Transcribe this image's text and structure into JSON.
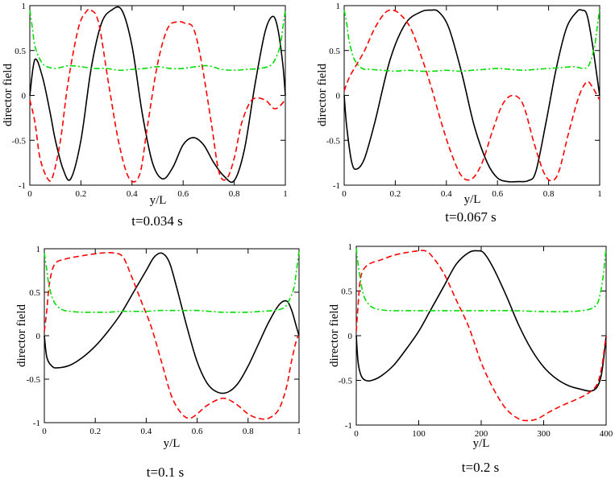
{
  "chart_data": [
    {
      "type": "line",
      "caption": "t=0.034 s",
      "xlabel": "y/L",
      "ylabel": "director field",
      "xlim": [
        0,
        1
      ],
      "ylim": [
        -1,
        1
      ],
      "xticks": [
        "0",
        "0.2",
        "0.4",
        "0.6",
        "0.8",
        "1"
      ],
      "yticks": [
        "-1",
        "-0.5",
        "0",
        "0.5",
        "1"
      ],
      "series": [
        {
          "color": "#000000",
          "dash": "solid",
          "x": [
            0,
            0.02,
            0.05,
            0.08,
            0.1,
            0.13,
            0.16,
            0.2,
            0.24,
            0.28,
            0.32,
            0.36,
            0.4,
            0.44,
            0.48,
            0.52,
            0.56,
            0.6,
            0.64,
            0.68,
            0.72,
            0.76,
            0.8,
            0.84,
            0.88,
            0.92,
            0.95,
            0.97,
            0.99,
            1
          ],
          "y": [
            0,
            0.4,
            0.2,
            -0.2,
            -0.5,
            -0.82,
            -0.93,
            -0.5,
            0.3,
            0.8,
            0.95,
            0.95,
            0.55,
            -0.2,
            -0.75,
            -0.93,
            -0.8,
            -0.55,
            -0.47,
            -0.55,
            -0.75,
            -0.9,
            -0.95,
            -0.6,
            0.1,
            0.7,
            0.88,
            0.75,
            0.35,
            0
          ]
        },
        {
          "color": "#ff0000",
          "dash": "dashed",
          "x": [
            0,
            0.02,
            0.04,
            0.07,
            0.09,
            0.12,
            0.15,
            0.19,
            0.22,
            0.24,
            0.27,
            0.31,
            0.35,
            0.39,
            0.43,
            0.46,
            0.5,
            0.54,
            0.58,
            0.61,
            0.64,
            0.67,
            0.71,
            0.74,
            0.77,
            0.8,
            0.83,
            0.87,
            0.92,
            0.96,
            1
          ],
          "y": [
            -0.05,
            -0.3,
            -0.7,
            -0.93,
            -0.9,
            -0.5,
            0.15,
            0.75,
            0.93,
            0.95,
            0.8,
            0.1,
            -0.55,
            -0.93,
            -0.88,
            -0.35,
            0.35,
            0.75,
            0.82,
            0.8,
            0.75,
            0.4,
            -0.3,
            -0.85,
            -0.93,
            -0.7,
            -0.3,
            -0.05,
            -0.05,
            -0.15,
            -0.05
          ]
        },
        {
          "color": "#00dd00",
          "dash": "dashdot",
          "x": [
            0,
            0.01,
            0.02,
            0.04,
            0.06,
            0.1,
            0.15,
            0.2,
            0.25,
            0.3,
            0.35,
            0.4,
            0.45,
            0.5,
            0.55,
            0.6,
            0.65,
            0.7,
            0.75,
            0.8,
            0.85,
            0.9,
            0.94,
            0.96,
            0.98,
            0.99,
            1
          ],
          "y": [
            0.95,
            0.75,
            0.55,
            0.4,
            0.33,
            0.3,
            0.33,
            0.32,
            0.3,
            0.3,
            0.28,
            0.29,
            0.3,
            0.32,
            0.3,
            0.3,
            0.32,
            0.33,
            0.29,
            0.28,
            0.29,
            0.3,
            0.33,
            0.4,
            0.55,
            0.75,
            0.95
          ]
        }
      ]
    },
    {
      "type": "line",
      "caption": "t=0.067 s",
      "xlabel": "y/L",
      "ylabel": "director field",
      "xlim": [
        0,
        1
      ],
      "ylim": [
        -1,
        1
      ],
      "xticks": [
        "0",
        "0.2",
        "0.4",
        "0.6",
        "0.8",
        "1"
      ],
      "yticks": [
        "-1",
        "-0.5",
        "0",
        "0.5",
        "1"
      ],
      "series": [
        {
          "color": "#000000",
          "dash": "solid",
          "x": [
            0,
            0.01,
            0.03,
            0.05,
            0.08,
            0.12,
            0.18,
            0.24,
            0.3,
            0.34,
            0.37,
            0.41,
            0.46,
            0.51,
            0.56,
            0.6,
            0.64,
            0.68,
            0.72,
            0.75,
            0.79,
            0.83,
            0.87,
            0.91,
            0.93,
            0.95,
            0.97,
            0.99,
            1
          ],
          "y": [
            0,
            -0.35,
            -0.75,
            -0.82,
            -0.7,
            -0.3,
            0.4,
            0.8,
            0.93,
            0.95,
            0.93,
            0.75,
            0.25,
            -0.35,
            -0.75,
            -0.92,
            -0.96,
            -0.96,
            -0.95,
            -0.85,
            -0.3,
            0.3,
            0.75,
            0.93,
            0.95,
            0.9,
            0.6,
            0.2,
            0
          ]
        },
        {
          "color": "#ff0000",
          "dash": "dashed",
          "x": [
            0,
            0.02,
            0.05,
            0.08,
            0.12,
            0.16,
            0.19,
            0.22,
            0.26,
            0.3,
            0.34,
            0.38,
            0.42,
            0.46,
            0.5,
            0.54,
            0.58,
            0.62,
            0.66,
            0.7,
            0.74,
            0.78,
            0.81,
            0.84,
            0.88,
            0.92,
            0.95,
            0.97,
            0.99,
            1
          ],
          "y": [
            0.05,
            0.2,
            0.35,
            0.5,
            0.75,
            0.92,
            0.95,
            0.9,
            0.75,
            0.45,
            0.1,
            -0.3,
            -0.65,
            -0.9,
            -0.93,
            -0.75,
            -0.4,
            -0.1,
            0,
            -0.1,
            -0.5,
            -0.85,
            -0.95,
            -0.85,
            -0.4,
            0,
            0.15,
            0.1,
            0,
            -0.05
          ]
        },
        {
          "color": "#00dd00",
          "dash": "dashdot",
          "x": [
            0,
            0.01,
            0.02,
            0.04,
            0.07,
            0.1,
            0.15,
            0.2,
            0.25,
            0.3,
            0.35,
            0.4,
            0.45,
            0.5,
            0.55,
            0.6,
            0.65,
            0.7,
            0.75,
            0.8,
            0.85,
            0.9,
            0.94,
            0.96,
            0.98,
            0.99,
            1
          ],
          "y": [
            0.95,
            0.8,
            0.6,
            0.4,
            0.3,
            0.29,
            0.28,
            0.27,
            0.28,
            0.27,
            0.27,
            0.28,
            0.27,
            0.28,
            0.29,
            0.3,
            0.29,
            0.28,
            0.29,
            0.3,
            0.31,
            0.32,
            0.3,
            0.35,
            0.55,
            0.75,
            0.97
          ]
        }
      ]
    },
    {
      "type": "line",
      "caption": "t=0.1 s",
      "xlabel": "y/L",
      "ylabel": "director field",
      "xlim": [
        0,
        1
      ],
      "ylim": [
        -1,
        1
      ],
      "xticks": [
        "0",
        "0.2",
        "0.4",
        "0.6",
        "0.8",
        "1"
      ],
      "yticks": [
        "-1",
        "-0.5",
        "0",
        "0.5",
        "1"
      ],
      "series": [
        {
          "color": "#000000",
          "dash": "solid",
          "x": [
            0,
            0.01,
            0.03,
            0.05,
            0.1,
            0.15,
            0.2,
            0.25,
            0.3,
            0.35,
            0.4,
            0.43,
            0.46,
            0.49,
            0.52,
            0.56,
            0.6,
            0.64,
            0.68,
            0.72,
            0.76,
            0.8,
            0.84,
            0.88,
            0.92,
            0.95,
            0.97,
            0.99,
            1
          ],
          "y": [
            0,
            -0.25,
            -0.35,
            -0.37,
            -0.34,
            -0.25,
            -0.12,
            0.05,
            0.25,
            0.5,
            0.75,
            0.9,
            0.95,
            0.85,
            0.55,
            0.1,
            -0.3,
            -0.55,
            -0.65,
            -0.65,
            -0.55,
            -0.35,
            -0.1,
            0.15,
            0.35,
            0.4,
            0.3,
            0.1,
            0
          ]
        },
        {
          "color": "#ff0000",
          "dash": "dashed",
          "x": [
            0,
            0.01,
            0.02,
            0.04,
            0.08,
            0.15,
            0.22,
            0.28,
            0.31,
            0.34,
            0.38,
            0.42,
            0.46,
            0.5,
            0.54,
            0.57,
            0.6,
            0.64,
            0.7,
            0.75,
            0.8,
            0.84,
            0.88,
            0.92,
            0.95,
            0.97,
            0.99,
            1
          ],
          "y": [
            0.05,
            0.3,
            0.6,
            0.82,
            0.88,
            0.92,
            0.95,
            0.95,
            0.9,
            0.7,
            0.4,
            0.1,
            -0.3,
            -0.7,
            -0.9,
            -0.95,
            -0.9,
            -0.8,
            -0.72,
            -0.78,
            -0.9,
            -0.95,
            -0.95,
            -0.85,
            -0.6,
            -0.3,
            -0.05,
            0
          ]
        },
        {
          "color": "#00dd00",
          "dash": "dashdot",
          "x": [
            0,
            0.01,
            0.02,
            0.04,
            0.07,
            0.1,
            0.15,
            0.2,
            0.25,
            0.3,
            0.35,
            0.4,
            0.45,
            0.5,
            0.55,
            0.6,
            0.65,
            0.7,
            0.75,
            0.8,
            0.85,
            0.9,
            0.94,
            0.96,
            0.98,
            0.99,
            1
          ],
          "y": [
            0.95,
            0.75,
            0.55,
            0.38,
            0.3,
            0.28,
            0.27,
            0.27,
            0.27,
            0.28,
            0.28,
            0.28,
            0.29,
            0.29,
            0.29,
            0.29,
            0.28,
            0.27,
            0.27,
            0.27,
            0.28,
            0.29,
            0.32,
            0.4,
            0.55,
            0.75,
            0.97
          ]
        }
      ]
    },
    {
      "type": "line",
      "caption": "t=0.2 s",
      "xlabel": "y/L",
      "ylabel": "director field",
      "xlim": [
        0,
        400
      ],
      "ylim": [
        -1,
        1
      ],
      "xticks": [
        "0",
        "100",
        "200",
        "300",
        "400"
      ],
      "yticks": [
        "-1",
        "-0.5",
        "0",
        "0.5",
        "1"
      ],
      "series": [
        {
          "color": "#000000",
          "dash": "solid",
          "x": [
            0,
            3,
            8,
            15,
            25,
            40,
            60,
            80,
            100,
            120,
            140,
            160,
            180,
            195,
            205,
            220,
            240,
            260,
            280,
            300,
            320,
            340,
            360,
            375,
            385,
            392,
            397,
            400
          ],
          "y": [
            0,
            -0.3,
            -0.45,
            -0.5,
            -0.5,
            -0.45,
            -0.33,
            -0.15,
            0.05,
            0.3,
            0.55,
            0.8,
            0.93,
            0.95,
            0.92,
            0.75,
            0.45,
            0.12,
            -0.15,
            -0.35,
            -0.48,
            -0.56,
            -0.6,
            -0.62,
            -0.58,
            -0.45,
            -0.2,
            0
          ]
        },
        {
          "color": "#ff0000",
          "dash": "dashed",
          "x": [
            0,
            3,
            6,
            10,
            20,
            40,
            60,
            80,
            100,
            110,
            120,
            140,
            160,
            180,
            200,
            220,
            240,
            260,
            275,
            290,
            310,
            330,
            350,
            370,
            385,
            393,
            398,
            400
          ],
          "y": [
            0.05,
            0.35,
            0.6,
            0.72,
            0.8,
            0.85,
            0.9,
            0.93,
            0.95,
            0.95,
            0.9,
            0.7,
            0.4,
            0.1,
            -0.3,
            -0.6,
            -0.82,
            -0.93,
            -0.95,
            -0.93,
            -0.85,
            -0.78,
            -0.72,
            -0.65,
            -0.55,
            -0.35,
            -0.1,
            0
          ]
        },
        {
          "color": "#00dd00",
          "dash": "dashdot",
          "x": [
            0,
            2,
            5,
            10,
            15,
            25,
            40,
            60,
            100,
            150,
            200,
            250,
            300,
            340,
            360,
            375,
            385,
            390,
            395,
            398,
            400
          ],
          "y": [
            0.98,
            0.85,
            0.7,
            0.5,
            0.4,
            0.32,
            0.29,
            0.28,
            0.28,
            0.28,
            0.28,
            0.28,
            0.27,
            0.27,
            0.28,
            0.3,
            0.35,
            0.45,
            0.65,
            0.85,
            0.98
          ]
        }
      ]
    }
  ]
}
